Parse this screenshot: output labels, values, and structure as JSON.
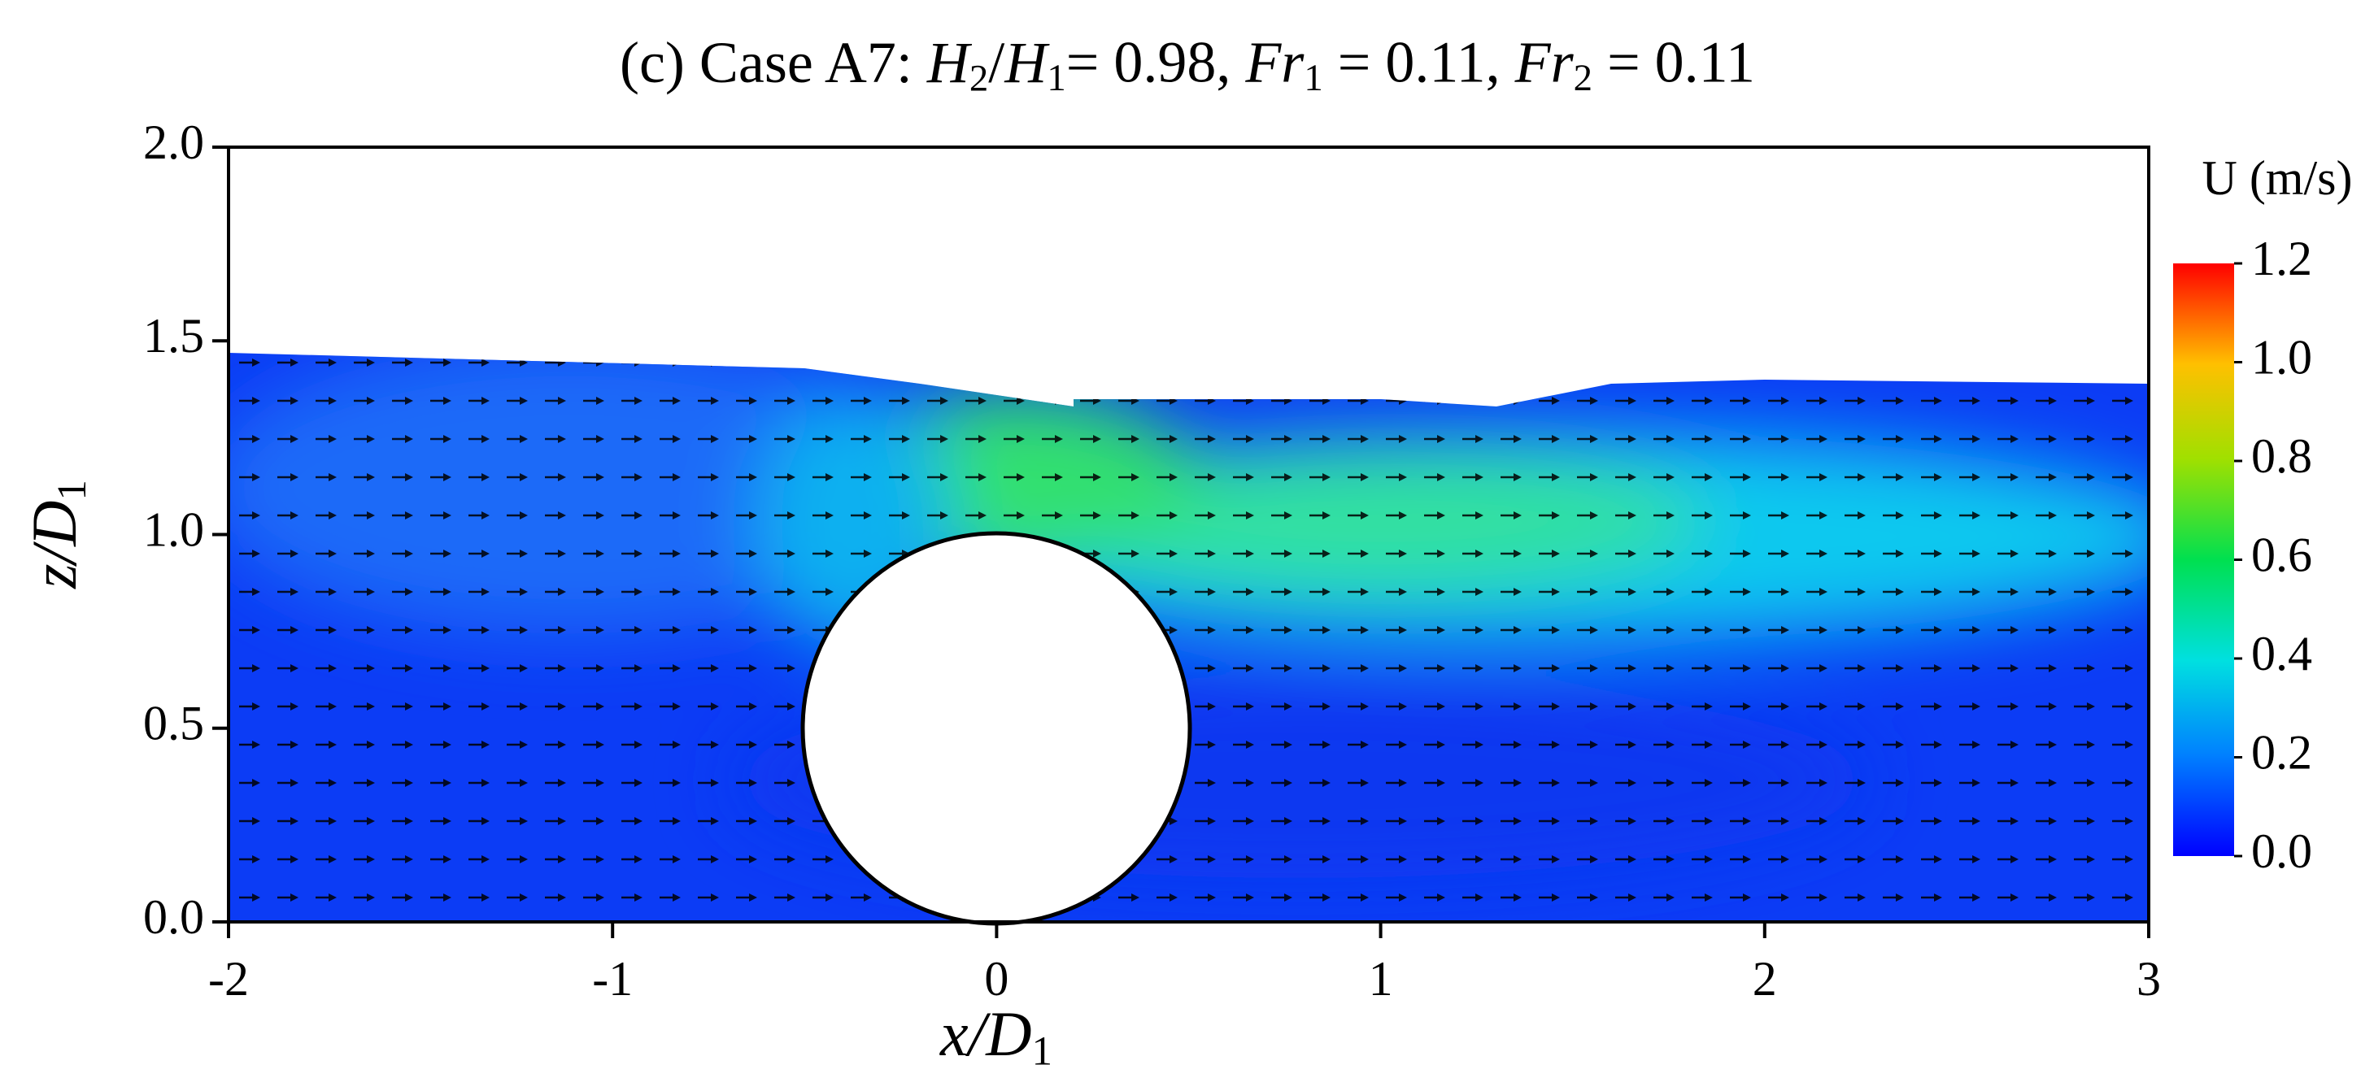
{
  "chart_data": {
    "type": "contour",
    "title_parts": [
      {
        "text": "(c) Case A7: ",
        "style": "normal"
      },
      {
        "text": "H",
        "style": "italic"
      },
      {
        "text": "2",
        "style": "sub"
      },
      {
        "text": "/",
        "style": "normal"
      },
      {
        "text": "H",
        "style": "italic"
      },
      {
        "text": "1",
        "style": "sub"
      },
      {
        "text": "= 0.98, ",
        "style": "normal"
      },
      {
        "text": "Fr",
        "style": "italic"
      },
      {
        "text": "1",
        "style": "sub"
      },
      {
        "text": " = 0.11, ",
        "style": "normal"
      },
      {
        "text": "Fr",
        "style": "italic"
      },
      {
        "text": "2",
        "style": "sub"
      },
      {
        "text": " = 0.11",
        "style": "normal"
      }
    ],
    "x_label_parts": [
      {
        "text": "x/D",
        "style": "italic"
      },
      {
        "text": "1",
        "style": "sub"
      }
    ],
    "y_label_parts": [
      {
        "text": "z/D",
        "style": "italic"
      },
      {
        "text": "1",
        "style": "sub"
      }
    ],
    "xlim": [
      -2,
      3
    ],
    "xticks": [
      -2,
      -1,
      0,
      1,
      2,
      3
    ],
    "ylim": [
      0,
      2
    ],
    "yticks": [
      {
        "value": 0,
        "label": "0.0"
      },
      {
        "value": 0.5,
        "label": "0.5"
      },
      {
        "value": 1,
        "label": "1.0"
      },
      {
        "value": 1.5,
        "label": "1.5"
      },
      {
        "value": 2,
        "label": "2.0"
      }
    ],
    "colorbar": {
      "label": "U (m/s)",
      "lim": [
        0,
        1.2
      ],
      "ticks": [
        {
          "value": 0,
          "label": "0.0"
        },
        {
          "value": 0.2,
          "label": "0.2"
        },
        {
          "value": 0.4,
          "label": "0.4"
        },
        {
          "value": 0.6,
          "label": "0.6"
        },
        {
          "value": 0.8,
          "label": "0.8"
        },
        {
          "value": 1,
          "label": "1.0"
        },
        {
          "value": 1.2,
          "label": "1.2"
        }
      ]
    }
  }
}
